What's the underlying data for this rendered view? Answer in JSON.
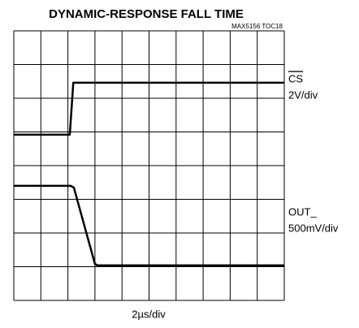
{
  "chart_data": {
    "type": "line",
    "title": "DYNAMIC-RESPONSE FALL TIME",
    "subtitle": "MAX5156 TOC18",
    "x_label": "2µs/div",
    "xlim": [
      0,
      10
    ],
    "ylim": [
      0,
      8
    ],
    "xticks": [
      0,
      1,
      2,
      3,
      4,
      5,
      6,
      7,
      8,
      9,
      10
    ],
    "yticks": [
      0,
      1,
      2,
      3,
      4,
      5,
      6,
      7,
      8
    ],
    "grid": true,
    "series": [
      {
        "name": "CS",
        "scale": "2V/div",
        "color": "#000000",
        "x": [
          0,
          2.07,
          2.2,
          10
        ],
        "values": [
          4.92,
          4.92,
          6.46,
          6.46
        ]
      },
      {
        "name": "OUT_",
        "scale": "500mV/div",
        "color": "#000000",
        "x": [
          0,
          2.1,
          2.22,
          3.0,
          3.1,
          10
        ],
        "values": [
          3.4,
          3.4,
          3.35,
          1.08,
          1.04,
          1.04
        ]
      }
    ]
  }
}
